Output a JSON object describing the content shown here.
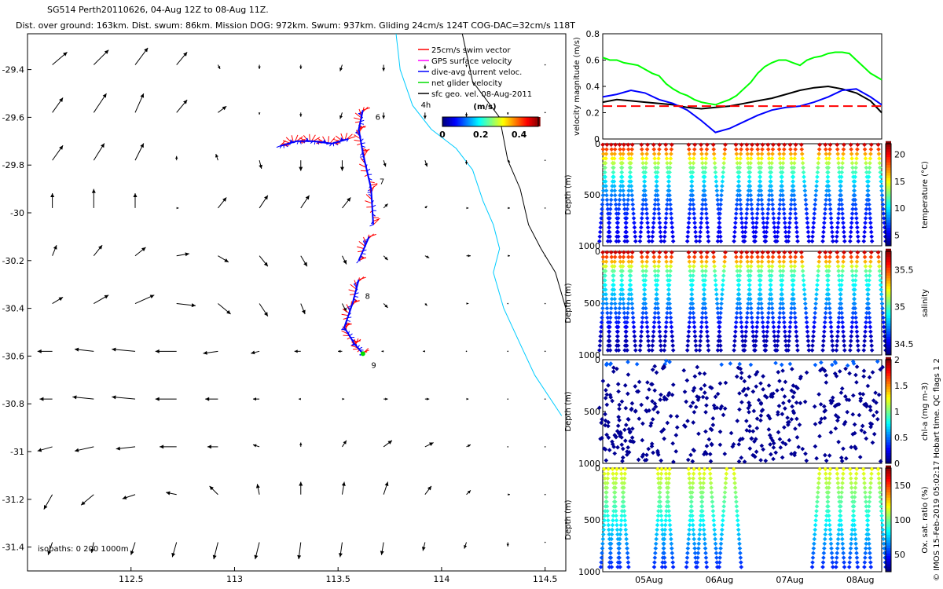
{
  "header": {
    "title": "SG514 Perth20110626, 04-Aug 12Z to 08-Aug 11Z.",
    "subtitle": "Dist. over ground: 163km. Dist. swum: 86km. Mission DOG: 972km. Swum: 937km. Gliding 24cm/s 124T COG-DAC=32cm/s 118T"
  },
  "footer_credit": "© IMOS 15-Feb-2019 05:02:17 Hobart time. QC flags 1  2",
  "chart_data": [
    {
      "id": "map",
      "type": "scatter",
      "x_ticks": [
        112.5,
        113,
        113.5,
        114,
        114.5
      ],
      "y_ticks": [
        -29.4,
        -29.6,
        -29.8,
        -30,
        -30.2,
        -30.4,
        -30.6,
        -30.8,
        -31,
        -31.2,
        -31.4
      ],
      "xlim": [
        112.0,
        114.6
      ],
      "ylim": [
        -31.5,
        -29.25
      ],
      "legend": {
        "placement": "top-right",
        "entries": [
          {
            "label": "25cm/s swim vector",
            "color": "#ff0000"
          },
          {
            "label": "GPS surface velocity",
            "color": "#ff00ff"
          },
          {
            "label": "dive-avg current veloc.",
            "color": "#0000ff"
          },
          {
            "label": "net glider velocity",
            "color": "#00dd00"
          },
          {
            "label": "sfc geo. vel. 08-Aug-2011",
            "color": "#000000"
          }
        ]
      },
      "colorbar": {
        "label": "(m/s)",
        "ticks": [
          0,
          0.2,
          0.4
        ],
        "range": [
          0,
          0.5
        ]
      },
      "annotations": [
        {
          "text": "4h",
          "x": 113.9,
          "y": -29.56
        },
        {
          "text": "6",
          "x": 113.68,
          "y": -29.61
        },
        {
          "text": "7",
          "x": 113.7,
          "y": -29.88
        },
        {
          "text": "8",
          "x": 113.63,
          "y": -30.36
        },
        {
          "text": "9",
          "x": 113.66,
          "y": -30.65
        }
      ],
      "isobath_note": "isobaths: 0   200  1000m",
      "isobaths": [
        {
          "depth": "200m",
          "color": "#00ccff",
          "points": [
            [
              113.78,
              -29.25
            ],
            [
              113.8,
              -29.4
            ],
            [
              113.86,
              -29.55
            ],
            [
              113.95,
              -29.65
            ],
            [
              114.07,
              -29.73
            ],
            [
              114.15,
              -29.82
            ],
            [
              114.2,
              -29.95
            ],
            [
              114.25,
              -30.05
            ],
            [
              114.28,
              -30.15
            ],
            [
              114.25,
              -30.25
            ],
            [
              114.3,
              -30.4
            ],
            [
              114.38,
              -30.55
            ],
            [
              114.45,
              -30.68
            ],
            [
              114.58,
              -30.85
            ]
          ]
        },
        {
          "depth": "0m",
          "color": "#000000",
          "points": [
            [
              114.1,
              -29.25
            ],
            [
              114.15,
              -29.45
            ],
            [
              114.28,
              -29.6
            ],
            [
              114.32,
              -29.78
            ],
            [
              114.38,
              -29.9
            ],
            [
              114.42,
              -30.05
            ],
            [
              114.48,
              -30.15
            ],
            [
              114.55,
              -30.25
            ],
            [
              114.6,
              -30.4
            ]
          ]
        }
      ],
      "geo_vectors": {
        "lons": [
          112.12,
          112.32,
          112.52,
          112.72,
          112.92,
          113.12,
          113.32,
          113.52,
          113.72,
          113.92,
          114.12,
          114.32,
          114.5
        ],
        "lats": [
          -29.38,
          -29.58,
          -29.78,
          -29.98,
          -30.18,
          -30.38,
          -30.58,
          -30.78,
          -30.98,
          -31.18,
          -31.38
        ],
        "u": [
          [
            0.07,
            0.07,
            0.06,
            0.05,
            0.01,
            0.0,
            0.0,
            -0.01,
            0.0,
            0.0,
            0.0,
            0.0,
            0.0
          ],
          [
            0.05,
            0.06,
            0.04,
            0.05,
            0.04,
            0.0,
            0.0,
            -0.01,
            0.0,
            0.0,
            0.0,
            0.0,
            0.0
          ],
          [
            0.05,
            0.05,
            0.04,
            0.0,
            -0.01,
            0.01,
            0.0,
            0.0,
            0.01,
            0.01,
            0.0,
            0.01,
            0.0
          ],
          [
            0.0,
            0.0,
            0.0,
            0.01,
            0.04,
            0.04,
            0.04,
            0.04,
            0.02,
            0.01,
            0.01,
            0.01,
            0.0
          ],
          [
            0.02,
            0.04,
            0.05,
            0.06,
            0.05,
            0.04,
            0.03,
            0.02,
            0.02,
            0.02,
            0.02,
            0.01,
            0.0
          ],
          [
            0.05,
            0.07,
            0.09,
            0.09,
            0.06,
            0.04,
            0.02,
            0.02,
            0.02,
            0.01,
            0.01,
            0.0,
            0.0
          ],
          [
            -0.07,
            -0.09,
            -0.11,
            -0.1,
            -0.07,
            -0.04,
            -0.03,
            -0.02,
            -0.01,
            -0.01,
            0.0,
            0.0,
            0.0
          ],
          [
            -0.06,
            -0.1,
            -0.11,
            -0.1,
            -0.06,
            -0.03,
            -0.01,
            0.01,
            0.02,
            0.02,
            0.01,
            0.0,
            0.0
          ],
          [
            -0.07,
            -0.09,
            -0.09,
            -0.08,
            -0.05,
            -0.03,
            0.0,
            0.02,
            0.04,
            0.04,
            0.02,
            0.0,
            0.0
          ],
          [
            -0.04,
            -0.06,
            -0.06,
            -0.05,
            -0.04,
            -0.01,
            0.0,
            0.01,
            0.02,
            0.03,
            0.02,
            0.01,
            0.0
          ],
          [
            -0.02,
            -0.01,
            -0.02,
            -0.02,
            -0.02,
            -0.02,
            -0.01,
            -0.01,
            -0.01,
            -0.01,
            -0.01,
            0.0,
            0.0
          ]
        ],
        "v": [
          [
            0.06,
            0.07,
            0.08,
            0.06,
            -0.02,
            -0.02,
            -0.02,
            -0.03,
            -0.03,
            -0.02,
            -0.01,
            0.0,
            0.0
          ],
          [
            0.07,
            0.09,
            0.09,
            0.06,
            0.03,
            -0.01,
            -0.02,
            -0.03,
            -0.03,
            -0.03,
            -0.02,
            -0.01,
            0.0
          ],
          [
            0.07,
            0.08,
            0.08,
            0.02,
            0.03,
            -0.04,
            -0.05,
            -0.05,
            -0.03,
            -0.03,
            -0.02,
            -0.01,
            0.0
          ],
          [
            0.07,
            0.09,
            0.07,
            0.0,
            0.05,
            0.06,
            0.06,
            0.05,
            0.02,
            0.01,
            0.0,
            0.0,
            0.0
          ],
          [
            0.05,
            0.05,
            0.04,
            0.01,
            -0.03,
            -0.05,
            -0.05,
            -0.04,
            -0.02,
            -0.01,
            0.0,
            0.0,
            0.0
          ],
          [
            0.03,
            0.04,
            0.04,
            -0.01,
            -0.05,
            -0.06,
            -0.05,
            -0.04,
            -0.02,
            -0.01,
            0.0,
            0.0,
            0.0
          ],
          [
            0.0,
            0.01,
            0.01,
            0.0,
            -0.01,
            -0.01,
            0.0,
            0.0,
            0.0,
            0.0,
            0.0,
            0.0,
            0.0
          ],
          [
            0.0,
            0.01,
            0.01,
            0.0,
            0.0,
            0.0,
            0.0,
            0.0,
            0.0,
            0.0,
            0.0,
            0.0,
            0.0
          ],
          [
            -0.02,
            -0.02,
            -0.01,
            0.0,
            0.0,
            0.01,
            0.02,
            0.03,
            0.03,
            0.02,
            0.01,
            0.0,
            0.0
          ],
          [
            -0.07,
            -0.05,
            -0.02,
            0.01,
            0.04,
            0.05,
            0.06,
            0.06,
            0.06,
            0.04,
            0.02,
            0.0,
            0.0
          ],
          [
            -0.06,
            -0.05,
            -0.06,
            -0.07,
            -0.08,
            -0.08,
            -0.08,
            -0.07,
            -0.06,
            -0.04,
            -0.03,
            -0.02,
            0.0
          ]
        ]
      },
      "glider_track": {
        "color": "#0000ff",
        "segments": [
          [
            [
              113.62,
              -29.57
            ],
            [
              113.6,
              -29.65
            ],
            [
              113.62,
              -29.75
            ],
            [
              113.66,
              -29.9
            ],
            [
              113.67,
              -30.05
            ]
          ],
          [
            [
              113.55,
              -29.69
            ],
            [
              113.47,
              -29.71
            ],
            [
              113.38,
              -29.7
            ],
            [
              113.3,
              -29.7
            ],
            [
              113.22,
              -29.72
            ]
          ],
          [
            [
              113.65,
              -30.1
            ],
            [
              113.6,
              -30.2
            ]
          ],
          [
            [
              113.6,
              -30.28
            ],
            [
              113.57,
              -30.38
            ],
            [
              113.53,
              -30.48
            ],
            [
              113.58,
              -30.55
            ],
            [
              113.62,
              -30.59
            ]
          ]
        ]
      }
    },
    {
      "id": "velocity",
      "type": "line",
      "ylabel": "velocity magnitude (m/s)",
      "y_ticks": [
        0,
        0.2,
        0.4,
        0.6,
        0.8
      ],
      "ylim": [
        0,
        0.8
      ],
      "xlim": [
        4.5,
        8.46
      ],
      "series": [
        {
          "color": "#00ff00",
          "x": [
            4.5,
            4.6,
            4.7,
            4.8,
            4.9,
            5.0,
            5.1,
            5.2,
            5.3,
            5.4,
            5.5,
            5.6,
            5.7,
            5.8,
            5.9,
            6.0,
            6.1,
            6.2,
            6.3,
            6.4,
            6.5,
            6.6,
            6.7,
            6.8,
            6.9,
            7.0,
            7.1,
            7.2,
            7.3,
            7.4,
            7.5,
            7.6,
            7.7,
            7.8,
            7.9,
            8.0,
            8.1,
            8.2,
            8.3,
            8.46
          ],
          "y": [
            0.62,
            0.6,
            0.6,
            0.58,
            0.57,
            0.56,
            0.53,
            0.5,
            0.48,
            0.42,
            0.38,
            0.35,
            0.33,
            0.3,
            0.28,
            0.27,
            0.26,
            0.28,
            0.3,
            0.33,
            0.38,
            0.43,
            0.5,
            0.55,
            0.58,
            0.6,
            0.6,
            0.58,
            0.56,
            0.6,
            0.62,
            0.63,
            0.65,
            0.66,
            0.66,
            0.65,
            0.6,
            0.55,
            0.5,
            0.45
          ]
        },
        {
          "color": "#000000",
          "x": [
            4.5,
            4.7,
            4.9,
            5.1,
            5.3,
            5.5,
            5.7,
            5.9,
            6.1,
            6.3,
            6.5,
            6.7,
            6.9,
            7.1,
            7.3,
            7.5,
            7.7,
            7.9,
            8.1,
            8.3,
            8.46
          ],
          "y": [
            0.28,
            0.3,
            0.29,
            0.28,
            0.27,
            0.26,
            0.24,
            0.23,
            0.24,
            0.25,
            0.27,
            0.29,
            0.31,
            0.34,
            0.37,
            0.39,
            0.4,
            0.38,
            0.35,
            0.29,
            0.2
          ]
        },
        {
          "color": "#0000ff",
          "x": [
            4.5,
            4.7,
            4.9,
            5.1,
            5.3,
            5.5,
            5.7,
            5.9,
            6.1,
            6.3,
            6.5,
            6.7,
            6.9,
            7.1,
            7.3,
            7.5,
            7.7,
            7.9,
            8.1,
            8.3,
            8.46
          ],
          "y": [
            0.32,
            0.34,
            0.37,
            0.35,
            0.3,
            0.27,
            0.22,
            0.14,
            0.05,
            0.08,
            0.13,
            0.18,
            0.22,
            0.24,
            0.25,
            0.28,
            0.32,
            0.37,
            0.38,
            0.32,
            0.26
          ]
        },
        {
          "color": "#ff0000",
          "x": [
            4.5,
            8.46
          ],
          "y": [
            0.25,
            0.25
          ]
        }
      ]
    },
    {
      "id": "temperature",
      "type": "scatter",
      "ylabel": "Depth (m)",
      "y_ticks": [
        0,
        500,
        1000
      ],
      "ylim": [
        0,
        1000
      ],
      "colorbar": {
        "label": "temperature (°C)",
        "ticks": [
          5,
          10,
          15,
          20
        ],
        "range": [
          3,
          22
        ]
      }
    },
    {
      "id": "salinity",
      "type": "scatter",
      "ylabel": "Depth (m)",
      "y_ticks": [
        0,
        500,
        1000
      ],
      "ylim": [
        0,
        1000
      ],
      "colorbar": {
        "label": "salinity",
        "ticks": [
          34.5,
          35,
          35.5
        ],
        "range": [
          34.35,
          35.75
        ]
      }
    },
    {
      "id": "chla",
      "type": "scatter",
      "ylabel": "Depth (m)",
      "y_ticks": [
        0,
        500,
        1000
      ],
      "ylim": [
        0,
        1000
      ],
      "colorbar": {
        "label": "chl-a (mg m-3)",
        "ticks": [
          0,
          0.5,
          1,
          1.5,
          2
        ],
        "range": [
          0,
          2
        ]
      }
    },
    {
      "id": "oxygen",
      "type": "scatter",
      "ylabel": "Depth (m)",
      "y_ticks": [
        0,
        500,
        1000
      ],
      "ylim": [
        0,
        1000
      ],
      "x_ticks": [
        "05Aug",
        "06Aug",
        "07Aug",
        "08Aug"
      ],
      "colorbar": {
        "label": "Ox. sat. ratio (%)",
        "ticks": [
          50,
          100,
          150
        ],
        "range": [
          25,
          175
        ]
      }
    }
  ]
}
